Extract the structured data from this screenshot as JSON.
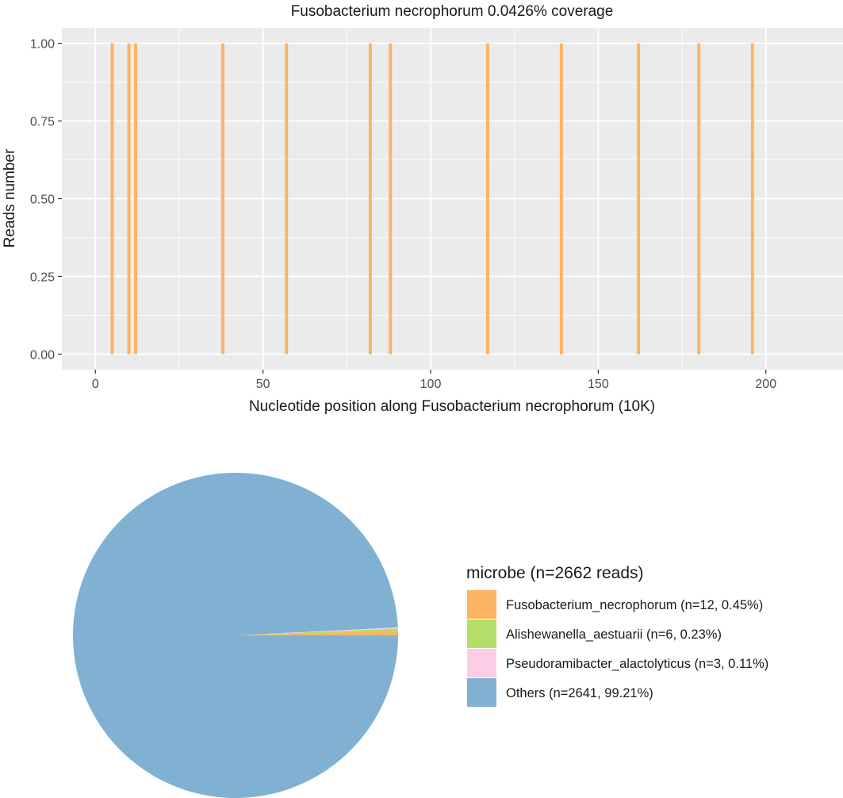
{
  "chart_data": [
    {
      "type": "bar",
      "title": "Fusobacterium necrophorum 0.0426% coverage",
      "xlabel": "Nucleotide position along Fusobacterium necrophorum (10K)",
      "ylabel": "Reads number",
      "xlim": [
        -10,
        223
      ],
      "ylim": [
        -0.05,
        1.05
      ],
      "x_ticks": [
        0,
        50,
        100,
        150,
        200
      ],
      "x_tick_labels": [
        "0",
        "50",
        "100",
        "150",
        "200"
      ],
      "y_ticks": [
        0,
        0.25,
        0.5,
        0.75,
        1
      ],
      "y_tick_labels": [
        "0.00",
        "0.25",
        "0.50",
        "0.75",
        "1.00"
      ],
      "grid": true,
      "bar_color": "#FDB462",
      "x": [
        5,
        10,
        12,
        38,
        57,
        82,
        88,
        117,
        139,
        162,
        180,
        196
      ],
      "values": [
        1,
        1,
        1,
        1,
        1,
        1,
        1,
        1,
        1,
        1,
        1,
        1
      ]
    },
    {
      "type": "pie",
      "legend_title": "microbe (n=2662 reads)",
      "legend_position": "right",
      "slices": [
        {
          "label": "Fusobacterium_necrophorum (n=12, 0.45%)",
          "value": 12,
          "color": "#FDB462"
        },
        {
          "label": "Alishewanella_aestuarii (n=6, 0.23%)",
          "value": 6,
          "color": "#B3DE69"
        },
        {
          "label": "Pseudoramibacter_alactolyticus (n=3, 0.11%)",
          "value": 3,
          "color": "#FCCDE5"
        },
        {
          "label": "Others (n=2641, 99.21%)",
          "value": 2641,
          "color": "#80B1D3"
        }
      ]
    }
  ]
}
